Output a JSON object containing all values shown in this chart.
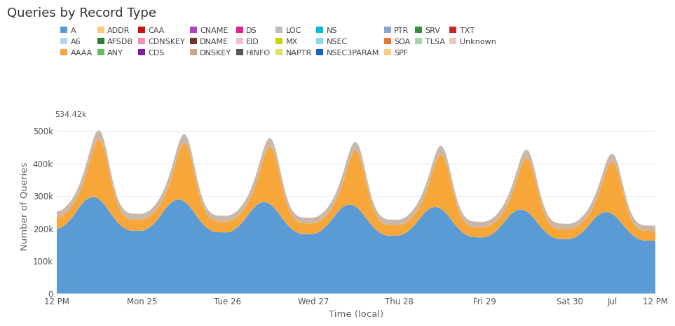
{
  "title": "Queries by Record Type",
  "xlabel": "Time (local)",
  "ylabel": "Number of Queries",
  "ymax": 534420,
  "yticks": [
    0,
    100000,
    200000,
    300000,
    400000,
    500000
  ],
  "ytick_labels": [
    "0",
    "100k",
    "200k",
    "300k",
    "400k",
    "500k"
  ],
  "ymax_label": "534.42k",
  "xtick_positions": [
    0,
    24,
    48,
    72,
    96,
    120,
    144,
    156,
    168
  ],
  "xtick_labels": [
    "12 PM",
    "Mon 25",
    "Tue 26",
    "Wed 27",
    "Thu 28",
    "Fri 29",
    "Sat 30",
    "Jul",
    "12 PM"
  ],
  "background_color": "#ffffff",
  "plot_bg_color": "#ffffff",
  "grid_color": "#e8e8e8",
  "color_A": "#5b9bd5",
  "color_AAAA": "#f7a739",
  "color_unknown": "#c9b8aa",
  "legend_entries": [
    {
      "label": "A",
      "color": "#5b9bd5"
    },
    {
      "label": "A6",
      "color": "#b8d4f0"
    },
    {
      "label": "AAAA",
      "color": "#f7a739"
    },
    {
      "label": "ADDR",
      "color": "#f9c97c"
    },
    {
      "label": "AFSDB",
      "color": "#2e7d32"
    },
    {
      "label": "ANY",
      "color": "#66bb6a"
    },
    {
      "label": "CAA",
      "color": "#cc1111"
    },
    {
      "label": "CDNSKEY",
      "color": "#f48fb1"
    },
    {
      "label": "CDS",
      "color": "#7b1fa2"
    },
    {
      "label": "CNAME",
      "color": "#ab47bc"
    },
    {
      "label": "DNAME",
      "color": "#6d3a2a"
    },
    {
      "label": "DNSKEY",
      "color": "#c8aa88"
    },
    {
      "label": "DS",
      "color": "#e91e8c"
    },
    {
      "label": "EID",
      "color": "#f8bbd0"
    },
    {
      "label": "HINFO",
      "color": "#555555"
    },
    {
      "label": "LOC",
      "color": "#bdbdbd"
    },
    {
      "label": "MX",
      "color": "#c6d400"
    },
    {
      "label": "NAPTR",
      "color": "#dde066"
    },
    {
      "label": "NS",
      "color": "#00bcd4"
    },
    {
      "label": "NSEC",
      "color": "#80deea"
    },
    {
      "label": "NSEC3PARAM",
      "color": "#1565c0"
    },
    {
      "label": "PTR",
      "color": "#90a4d4"
    },
    {
      "label": "SOA",
      "color": "#e8782a"
    },
    {
      "label": "SPF",
      "color": "#ffcc80"
    },
    {
      "label": "SRV",
      "color": "#388e3c"
    },
    {
      "label": "TLSA",
      "color": "#a5d6a7"
    },
    {
      "label": "TXT",
      "color": "#c62828"
    },
    {
      "label": "Unknown",
      "color": "#f0c8b8"
    }
  ]
}
